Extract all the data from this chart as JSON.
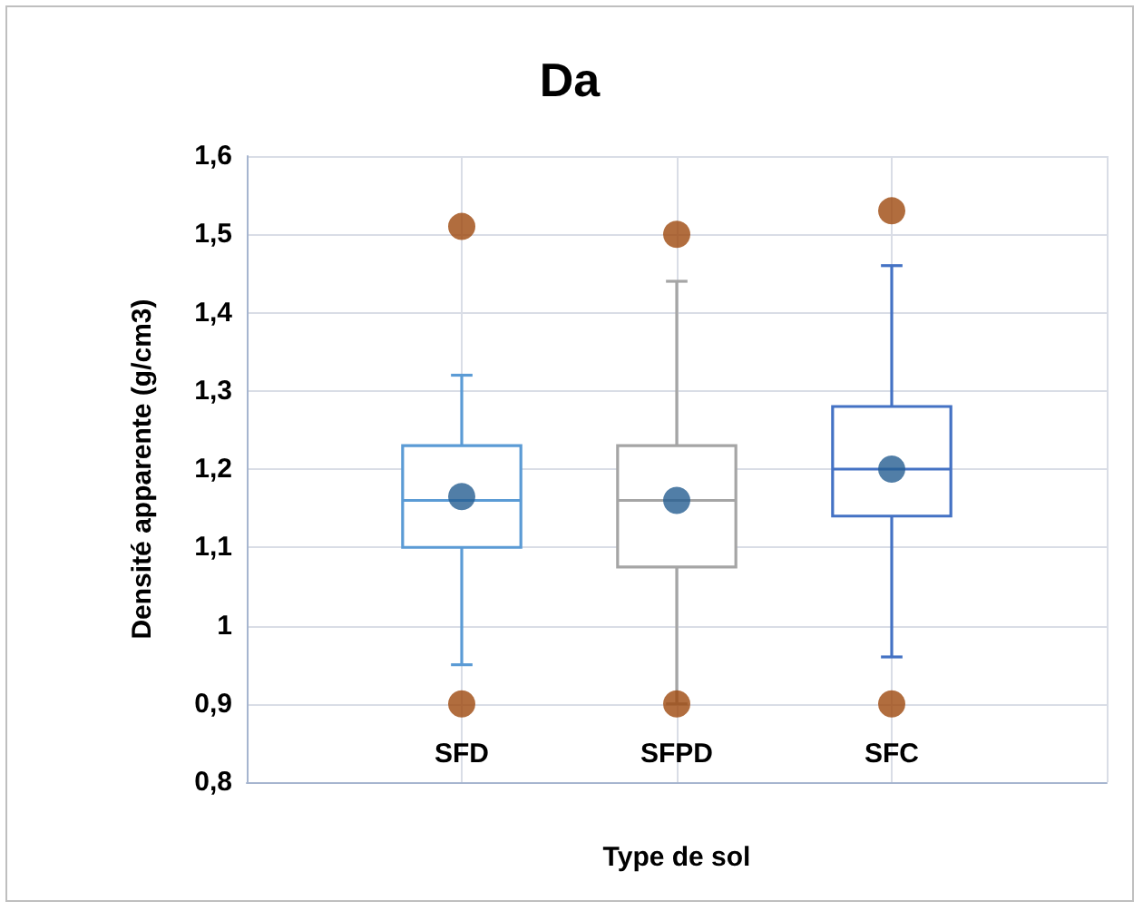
{
  "chart_data": {
    "type": "box",
    "title": "Da",
    "xlabel": "Type de sol",
    "ylabel": "Densité apparente (g/cm3)",
    "categories": [
      "SFD",
      "SFPD",
      "SFC"
    ],
    "boxes": [
      {
        "low": 0.95,
        "q1": 1.1,
        "median": 1.16,
        "q3": 1.23,
        "high": 1.32,
        "mean": 1.165,
        "outliers": [
          0.9,
          1.51
        ]
      },
      {
        "low": 0.9,
        "q1": 1.075,
        "median": 1.16,
        "q3": 1.23,
        "high": 1.44,
        "mean": 1.16,
        "outliers": [
          0.9,
          1.5
        ]
      },
      {
        "low": 0.96,
        "q1": 1.14,
        "median": 1.2,
        "q3": 1.28,
        "high": 1.46,
        "mean": 1.2,
        "outliers": [
          0.9,
          1.53
        ]
      }
    ],
    "colors": [
      "#5b9bd5",
      "#a5a5a5",
      "#4472c4"
    ],
    "ylim": [
      0.8,
      1.6
    ],
    "yticks": [
      {
        "value": 0.8,
        "label": "0,8"
      },
      {
        "value": 0.9,
        "label": "0,9"
      },
      1,
      {
        "value": 1.1,
        "label": "1,1"
      },
      {
        "value": 1.2,
        "label": "1,2"
      },
      {
        "value": 1.3,
        "label": "1,3"
      },
      {
        "value": 1.4,
        "label": "1,4"
      },
      {
        "value": 1.5,
        "label": "1,5"
      },
      {
        "value": 1.6,
        "label": "1,6"
      }
    ],
    "grid": true,
    "legend": false
  }
}
